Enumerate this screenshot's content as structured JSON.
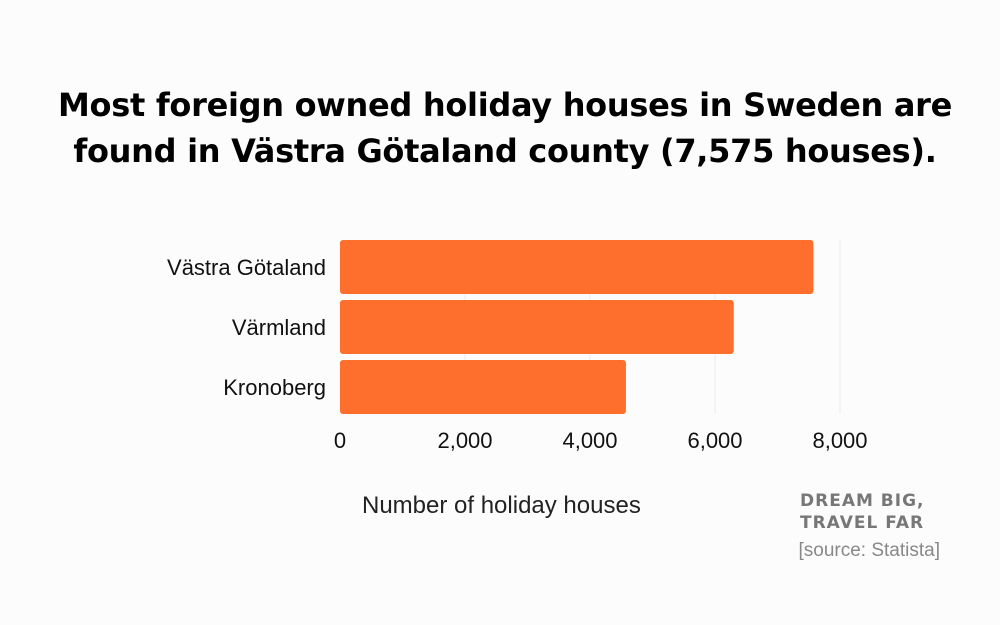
{
  "title": "Most foreign owned holiday houses in Sweden are found in Västra Götaland county (7,575 houses).",
  "brand": {
    "line1": "DREAM BIG,",
    "line2": "TRAVEL FAR"
  },
  "source": "[source: Statista]",
  "colors": {
    "bar": "#fe6f2e",
    "grid": "#ebebeb",
    "background": "#fdfcfc"
  },
  "chart_data": {
    "type": "bar",
    "orientation": "horizontal",
    "categories": [
      "Västra Götaland",
      "Värmland",
      "Kronoberg"
    ],
    "values": [
      7575,
      6300,
      4575
    ],
    "xlabel": "Number of holiday houses",
    "ylabel": "",
    "xlim": [
      0,
      8000
    ],
    "xticks": [
      0,
      2000,
      4000,
      6000,
      8000
    ],
    "xtick_labels": [
      "0",
      "2,000",
      "4,000",
      "6,000",
      "8,000"
    ],
    "grid": true,
    "legend": "none"
  }
}
